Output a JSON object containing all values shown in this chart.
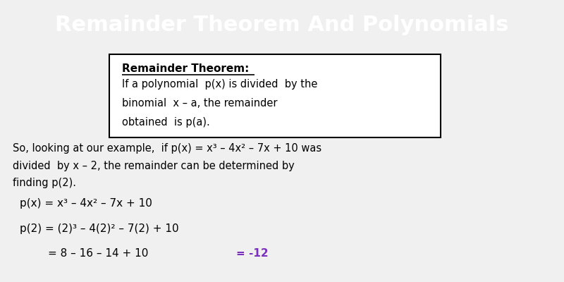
{
  "title": "Remainder Theorem And Polynomials",
  "title_bg": "#1a2b4a",
  "title_color": "#ffffff",
  "body_bg": "#f0f0f0",
  "box_title": "Remainder Theorem:",
  "box_lines": [
    "If a polynomial  p(x) is divided  by the",
    "binomial  x – a, the remainder",
    "obtained  is p(a)."
  ],
  "para_lines": [
    "So, looking at our example,  if p(x) = x³ – 4x² – 7x + 10 was",
    "divided  by x – 2, the remainder can be determined by",
    "finding p(2)."
  ],
  "eq1": "p(x) = x³ – 4x² – 7x + 10",
  "eq2": "p(2) = (2)³ – 4(2)² – 7(2) + 10",
  "eq3_left": "= 8 – 16 – 14 + 10",
  "eq3_right": "= -12",
  "eq3_right_color": "#7b2fbe",
  "font_family": "DejaVu Sans"
}
